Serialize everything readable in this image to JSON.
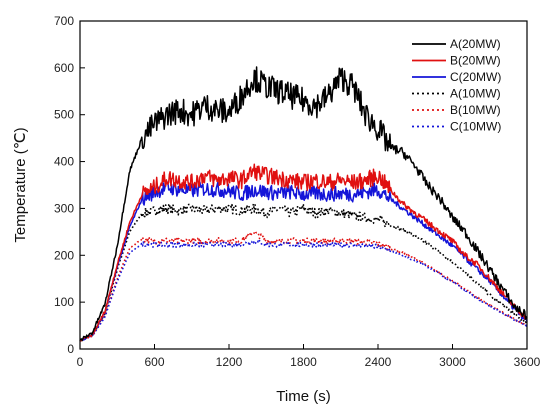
{
  "chart_data": {
    "type": "line",
    "xlabel": "Time (s)",
    "ylabel": "Temperature (℃)",
    "xlim": [
      0,
      3600
    ],
    "ylim": [
      0,
      700
    ],
    "xticks": [
      "0",
      "600",
      "1200",
      "1800",
      "2400",
      "3000",
      "3600"
    ],
    "yticks": [
      "0",
      "100",
      "200",
      "300",
      "400",
      "500",
      "600",
      "700"
    ],
    "grid": false,
    "legend_position": "top-right",
    "series": [
      {
        "name": "A(20MW)",
        "color": "#000000",
        "dash": "solid",
        "x": [
          0,
          100,
          200,
          300,
          400,
          500,
          600,
          700,
          800,
          900,
          1000,
          1100,
          1200,
          1300,
          1400,
          1500,
          1600,
          1700,
          1800,
          1900,
          2000,
          2100,
          2200,
          2300,
          2400,
          2500,
          2600,
          2700,
          2800,
          2900,
          3000,
          3100,
          3200,
          3300,
          3400,
          3500,
          3600
        ],
        "y": [
          18,
          35,
          95,
          220,
          380,
          450,
          480,
          500,
          510,
          500,
          520,
          510,
          505,
          540,
          580,
          560,
          550,
          540,
          530,
          520,
          540,
          580,
          560,
          500,
          470,
          430,
          420,
          390,
          350,
          320,
          280,
          250,
          210,
          170,
          130,
          90,
          70
        ]
      },
      {
        "name": "B(20MW)",
        "color": "#e01010",
        "dash": "solid",
        "x": [
          0,
          100,
          200,
          300,
          400,
          500,
          600,
          700,
          800,
          900,
          1000,
          1100,
          1200,
          1300,
          1400,
          1500,
          1600,
          1700,
          1800,
          1900,
          2000,
          2100,
          2200,
          2300,
          2400,
          2500,
          2600,
          2700,
          2800,
          2900,
          3000,
          3100,
          3200,
          3300,
          3400,
          3500,
          3600
        ],
        "y": [
          18,
          30,
          80,
          180,
          270,
          330,
          345,
          365,
          360,
          355,
          370,
          360,
          365,
          360,
          380,
          370,
          365,
          360,
          355,
          360,
          355,
          360,
          355,
          360,
          370,
          340,
          310,
          290,
          270,
          250,
          230,
          200,
          180,
          150,
          120,
          90,
          65
        ]
      },
      {
        "name": "C(20MW)",
        "color": "#1414d8",
        "dash": "solid",
        "x": [
          0,
          100,
          200,
          300,
          400,
          500,
          600,
          700,
          800,
          900,
          1000,
          1100,
          1200,
          1300,
          1400,
          1500,
          1600,
          1700,
          1800,
          1900,
          2000,
          2100,
          2200,
          2300,
          2400,
          2500,
          2600,
          2700,
          2800,
          2900,
          3000,
          3100,
          3200,
          3300,
          3400,
          3500,
          3600
        ],
        "y": [
          18,
          30,
          78,
          175,
          260,
          320,
          335,
          345,
          340,
          338,
          342,
          340,
          338,
          330,
          340,
          335,
          332,
          335,
          330,
          332,
          330,
          332,
          330,
          335,
          340,
          320,
          300,
          280,
          260,
          240,
          220,
          195,
          170,
          145,
          115,
          85,
          60
        ]
      },
      {
        "name": "A(10MW)",
        "color": "#000000",
        "dash": "dot",
        "x": [
          0,
          100,
          200,
          300,
          400,
          500,
          600,
          700,
          800,
          900,
          1000,
          1100,
          1200,
          1300,
          1400,
          1500,
          1600,
          1700,
          1800,
          1900,
          2000,
          2100,
          2200,
          2300,
          2400,
          2500,
          2600,
          2700,
          2800,
          2900,
          3000,
          3100,
          3200,
          3300,
          3400,
          3500,
          3600
        ],
        "y": [
          18,
          30,
          75,
          170,
          250,
          290,
          295,
          300,
          295,
          300,
          295,
          300,
          300,
          295,
          300,
          290,
          300,
          290,
          300,
          290,
          295,
          290,
          285,
          280,
          275,
          265,
          255,
          240,
          225,
          205,
          185,
          165,
          140,
          115,
          95,
          75,
          55
        ]
      },
      {
        "name": "B(10MW)",
        "color": "#e01010",
        "dash": "dot",
        "x": [
          0,
          100,
          200,
          300,
          400,
          500,
          600,
          700,
          800,
          900,
          1000,
          1100,
          1200,
          1300,
          1400,
          1500,
          1600,
          1700,
          1800,
          1900,
          2000,
          2100,
          2200,
          2300,
          2400,
          2500,
          2600,
          2700,
          2800,
          2900,
          3000,
          3100,
          3200,
          3300,
          3400,
          3500,
          3600
        ],
        "y": [
          18,
          28,
          70,
          150,
          215,
          235,
          230,
          232,
          230,
          232,
          230,
          232,
          230,
          232,
          250,
          232,
          230,
          232,
          230,
          232,
          230,
          232,
          230,
          228,
          225,
          215,
          205,
          192,
          178,
          162,
          145,
          128,
          110,
          93,
          78,
          63,
          50
        ]
      },
      {
        "name": "C(10MW)",
        "color": "#1414d8",
        "dash": "dot",
        "x": [
          0,
          100,
          200,
          300,
          400,
          500,
          600,
          700,
          800,
          900,
          1000,
          1100,
          1200,
          1300,
          1400,
          1500,
          1600,
          1700,
          1800,
          1900,
          2000,
          2100,
          2200,
          2300,
          2400,
          2500,
          2600,
          2700,
          2800,
          2900,
          3000,
          3100,
          3200,
          3300,
          3400,
          3500,
          3600
        ],
        "y": [
          18,
          28,
          68,
          145,
          205,
          225,
          222,
          223,
          222,
          223,
          222,
          223,
          222,
          223,
          230,
          223,
          222,
          223,
          222,
          223,
          222,
          223,
          222,
          220,
          218,
          210,
          200,
          188,
          175,
          160,
          143,
          126,
          108,
          92,
          77,
          62,
          50
        ]
      }
    ]
  }
}
